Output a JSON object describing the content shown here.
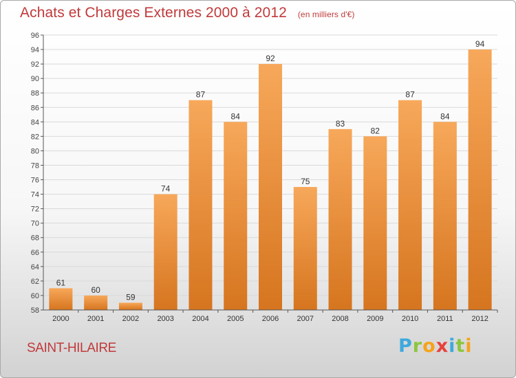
{
  "chart_data": {
    "type": "bar",
    "title": "Achats et Charges Externes 2000 à 2012",
    "unit_label": "(en milliers d'€)",
    "categories": [
      "2000",
      "2001",
      "2002",
      "2003",
      "2004",
      "2005",
      "2006",
      "2007",
      "2008",
      "2009",
      "2010",
      "2011",
      "2012"
    ],
    "values": [
      61,
      60,
      59,
      74,
      87,
      84,
      92,
      75,
      83,
      82,
      87,
      84,
      94
    ],
    "ylim": [
      58,
      96
    ],
    "ytick_step": 2,
    "grid": true,
    "bar_color_top": "#f7a85a",
    "bar_color_bottom": "#d6751f"
  },
  "footer": {
    "commune": "SAINT-HILAIRE",
    "logo": [
      "P",
      "r",
      "o",
      "x",
      "i",
      "t",
      "i"
    ],
    "logo_colors": [
      "#3fa9dd",
      "#8cc63f",
      "#f7a21b",
      "#e8403b",
      "#3fa9dd",
      "#8cc63f",
      "#f7a21b"
    ]
  },
  "colors": {
    "title": "#c0393b",
    "grid": "#d9d9d9",
    "axis": "#555555"
  }
}
